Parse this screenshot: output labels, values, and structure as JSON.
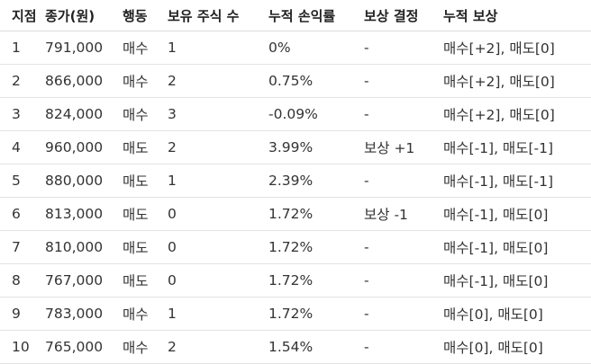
{
  "table": {
    "headers": [
      "지점",
      "종가(원)",
      "행동",
      "보유 주식 수",
      "누적 손익률",
      "보상 결정",
      "누적 보상"
    ],
    "rows": [
      [
        "1",
        "791,000",
        "매수",
        "1",
        "0%",
        "-",
        "매수[+2], 매도[0]"
      ],
      [
        "2",
        "866,000",
        "매수",
        "2",
        "0.75%",
        "-",
        "매수[+2], 매도[0]"
      ],
      [
        "3",
        "824,000",
        "매수",
        "3",
        "-0.09%",
        "-",
        "매수[+2], 매도[0]"
      ],
      [
        "4",
        "960,000",
        "매도",
        "2",
        "3.99%",
        "보상 +1",
        "매수[-1], 매도[-1]"
      ],
      [
        "5",
        "880,000",
        "매도",
        "1",
        "2.39%",
        "-",
        "매수[-1], 매도[-1]"
      ],
      [
        "6",
        "813,000",
        "매도",
        "0",
        "1.72%",
        "보상 -1",
        "매수[-1], 매도[0]"
      ],
      [
        "7",
        "810,000",
        "매도",
        "0",
        "1.72%",
        "-",
        "매수[-1], 매도[0]"
      ],
      [
        "8",
        "767,000",
        "매도",
        "0",
        "1.72%",
        "-",
        "매수[-1], 매도[0]"
      ],
      [
        "9",
        "783,000",
        "매수",
        "1",
        "1.72%",
        "-",
        "매수[0], 매도[0]"
      ],
      [
        "10",
        "765,000",
        "매수",
        "2",
        "1.54%",
        "-",
        "매수[0], 매도[0]"
      ]
    ]
  }
}
